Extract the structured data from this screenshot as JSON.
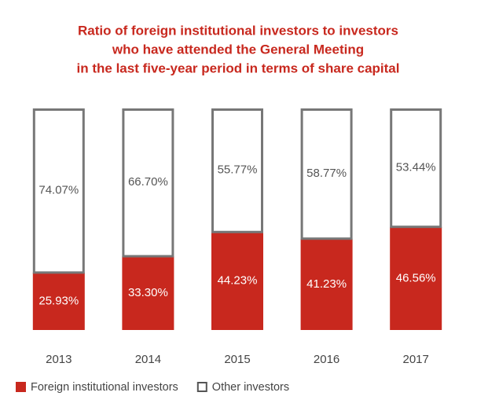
{
  "chart_data": {
    "type": "stacked_bar",
    "title": [
      "Ratio of foreign institutional investors to investors",
      "who have attended the General Meeting",
      "in the last five-year period in terms of share capital"
    ],
    "categories": [
      "2013",
      "2014",
      "2015",
      "2016",
      "2017"
    ],
    "ylim": [
      0,
      100
    ],
    "series": [
      {
        "name": "Foreign institutional investors",
        "color": "#c8281e",
        "values": [
          25.93,
          33.3,
          44.23,
          41.23,
          46.56
        ],
        "value_labels": [
          "25.93%",
          "33.30%",
          "44.23%",
          "41.23%",
          "46.56%"
        ]
      },
      {
        "name": "Other investors",
        "color": "#ffffff",
        "values": [
          74.07,
          66.7,
          55.77,
          58.77,
          53.44
        ],
        "value_labels": [
          "74.07%",
          "66.70%",
          "55.77%",
          "58.77%",
          "53.44%"
        ]
      }
    ]
  }
}
